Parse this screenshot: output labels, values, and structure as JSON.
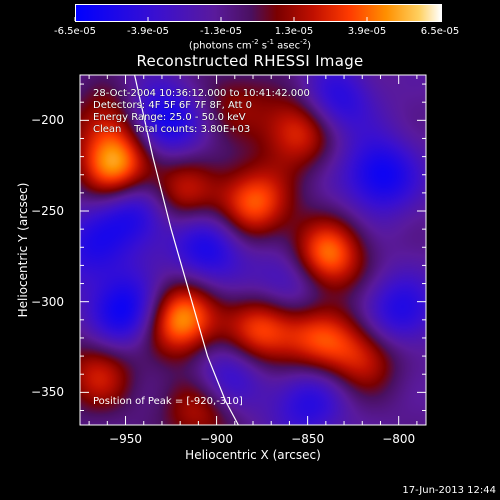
{
  "colorbar": {
    "ticks": [
      "-6.5e-05",
      "-3.9e-05",
      "-1.3e-05",
      "1.3e-05",
      "3.9e-05",
      "6.5e-05"
    ],
    "units_text": "(photons cm",
    "units_sup1": "-2",
    "units_mid": " s",
    "units_sup2": "-1",
    "units_mid2": " asec",
    "units_sup3": "-2",
    "units_end": ")"
  },
  "info": {
    "line1": "28-Oct-2004 10:36:12.000 to 10:41:42.000",
    "line2": "Detectors: 4F 5F 6F 7F 8F, Att 0",
    "line3": "Energy Range: 25.0 - 50.0 keV",
    "line4": "Clean    Total counts: 3.80E+03",
    "peak": "Position of Peak = [-920,-310]"
  },
  "footer": "17-Jun-2013 12:44",
  "chart_data": {
    "type": "heatmap",
    "title": "Reconstructed RHESSI Image",
    "xlabel": "Heliocentric X (arcsec)",
    "ylabel": "Heliocentric Y (arcsec)",
    "xlim": [
      -975,
      -785
    ],
    "ylim": [
      -368,
      -175
    ],
    "x_ticks": [
      -950,
      -900,
      -850,
      -800
    ],
    "y_ticks": [
      -200,
      -250,
      -300,
      -350
    ],
    "color_range": [
      -6.5e-05,
      6.5e-05
    ],
    "peak_position": [
      -920,
      -310
    ],
    "limb_curve": [
      [
        -945,
        -175
      ],
      [
        -935,
        -220
      ],
      [
        -925,
        -260
      ],
      [
        -915,
        -295
      ],
      [
        -905,
        -330
      ],
      [
        -895,
        -355
      ],
      [
        -888,
        -368
      ]
    ],
    "sources": [
      {
        "x": -920,
        "y": -310,
        "v": 1.0
      },
      {
        "x": -955,
        "y": -225,
        "v": 0.95
      },
      {
        "x": -920,
        "y": -240,
        "v": 0.55
      },
      {
        "x": -880,
        "y": -245,
        "v": 0.8
      },
      {
        "x": -855,
        "y": -205,
        "v": 0.7
      },
      {
        "x": -840,
        "y": -275,
        "v": 0.9
      },
      {
        "x": -875,
        "y": -315,
        "v": 0.75
      },
      {
        "x": -845,
        "y": -320,
        "v": 0.6
      },
      {
        "x": -820,
        "y": -330,
        "v": 0.55
      },
      {
        "x": -910,
        "y": -360,
        "v": 0.5
      },
      {
        "x": -965,
        "y": -340,
        "v": 0.55
      },
      {
        "x": -960,
        "y": -200,
        "v": 0.45
      },
      {
        "x": -890,
        "y": -190,
        "v": 0.35
      },
      {
        "x": -930,
        "y": -200,
        "v": -0.7
      },
      {
        "x": -905,
        "y": -270,
        "v": -0.6
      },
      {
        "x": -950,
        "y": -305,
        "v": -0.75
      },
      {
        "x": -945,
        "y": -250,
        "v": -0.65
      },
      {
        "x": -810,
        "y": -230,
        "v": -0.7
      },
      {
        "x": -800,
        "y": -305,
        "v": -0.55
      },
      {
        "x": -860,
        "y": -290,
        "v": -0.5
      },
      {
        "x": -835,
        "y": -190,
        "v": -0.55
      },
      {
        "x": -895,
        "y": -340,
        "v": -0.45
      },
      {
        "x": -850,
        "y": -355,
        "v": -0.5
      },
      {
        "x": -970,
        "y": -270,
        "v": -0.45
      }
    ]
  }
}
